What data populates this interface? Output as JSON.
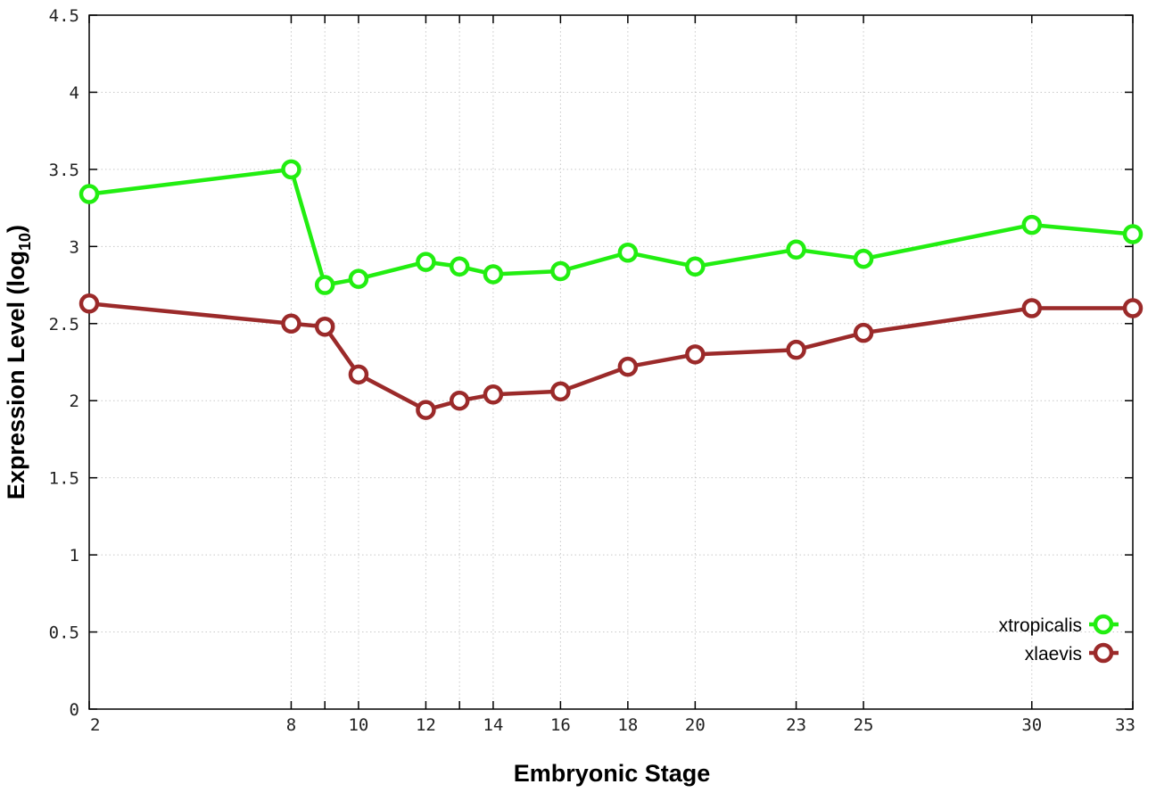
{
  "chart_data": {
    "type": "line",
    "xlabel": "Embryonic Stage",
    "ylabel_main": "Expression Level (log",
    "ylabel_sub": "10",
    "ylabel_close": ")",
    "x_ticks": [
      "2",
      "8",
      "9",
      "10",
      "12",
      "13",
      "14",
      "16",
      "18",
      "20",
      "23",
      "25",
      "30",
      "33"
    ],
    "x_tick_labels": [
      "2",
      "8",
      "",
      "10",
      "12",
      "",
      "14",
      "16",
      "18",
      "20",
      "23",
      "25",
      "30",
      "33"
    ],
    "y_ticks": [
      "0",
      "0.5",
      "1",
      "1.5",
      "2",
      "2.5",
      "3",
      "3.5",
      "4",
      "4.5"
    ],
    "ylim": [
      0,
      4.5
    ],
    "grid": true,
    "legend_position": "bottom-right",
    "series": [
      {
        "name": "xtropicalis",
        "color": "#22ee11",
        "values": [
          3.34,
          3.5,
          2.75,
          2.79,
          2.9,
          2.87,
          2.82,
          2.84,
          2.96,
          2.87,
          2.98,
          2.92,
          3.14,
          3.08
        ]
      },
      {
        "name": "xlaevis",
        "color": "#9b2a2a",
        "values": [
          2.63,
          2.5,
          2.48,
          2.17,
          1.94,
          2.0,
          2.04,
          2.06,
          2.22,
          2.3,
          2.33,
          2.44,
          2.6,
          2.6
        ]
      }
    ]
  }
}
